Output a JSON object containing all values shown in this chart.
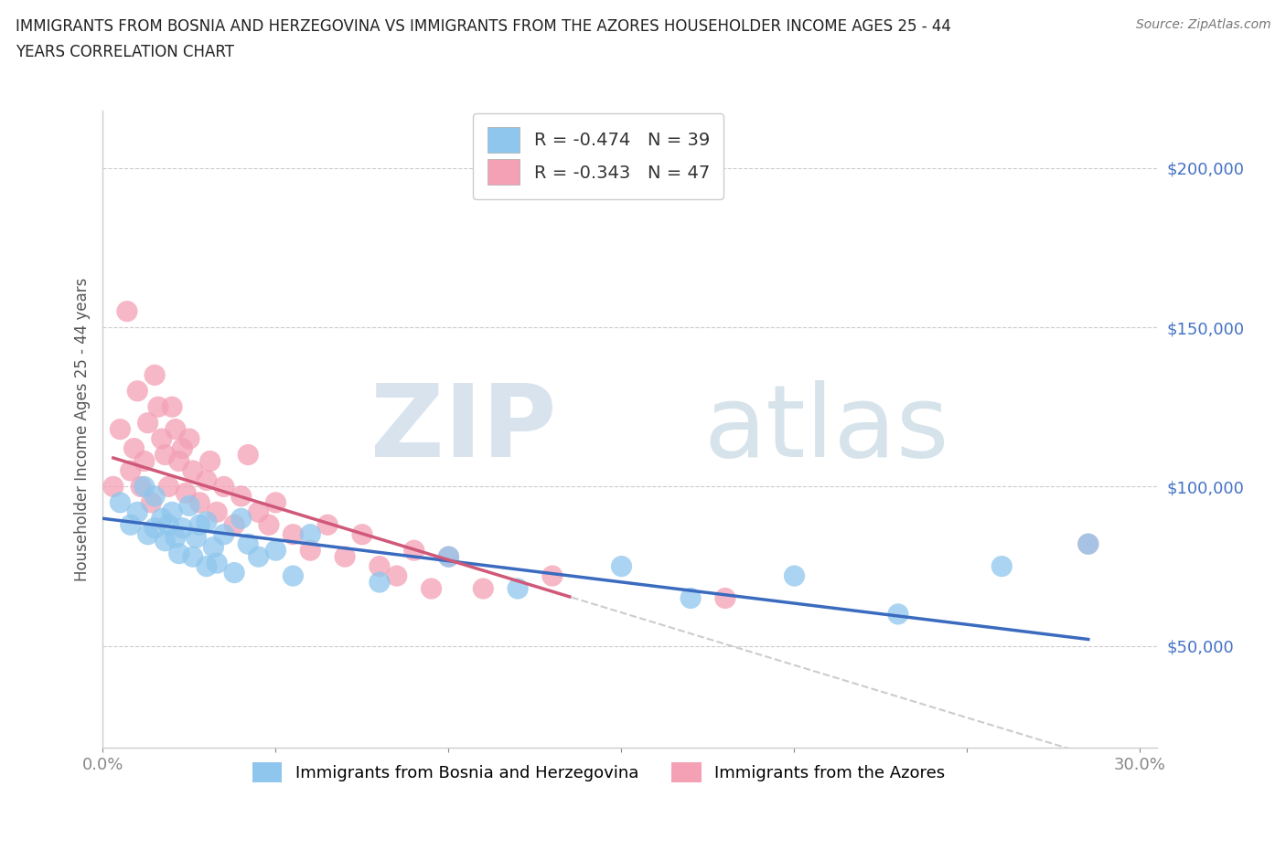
{
  "title_line1": "IMMIGRANTS FROM BOSNIA AND HERZEGOVINA VS IMMIGRANTS FROM THE AZORES HOUSEHOLDER INCOME AGES 25 - 44",
  "title_line2": "YEARS CORRELATION CHART",
  "source": "Source: ZipAtlas.com",
  "ylabel": "Householder Income Ages 25 - 44 years",
  "xlim": [
    0.0,
    0.305
  ],
  "ylim": [
    18000,
    218000
  ],
  "yticks": [
    50000,
    100000,
    150000,
    200000
  ],
  "ytick_labels": [
    "$50,000",
    "$100,000",
    "$150,000",
    "$200,000"
  ],
  "xticks": [
    0.0,
    0.05,
    0.1,
    0.15,
    0.2,
    0.25,
    0.3
  ],
  "xtick_labels": [
    "0.0%",
    "",
    "",
    "",
    "",
    "",
    "30.0%"
  ],
  "r_bosnia": -0.474,
  "n_bosnia": 39,
  "r_azores": -0.343,
  "n_azores": 47,
  "color_bosnia": "#8EC6ED",
  "color_azores": "#F4A0B5",
  "line_color_bosnia": "#3A6BBF",
  "line_color_azores": "#D05878",
  "ytick_color": "#4472C4",
  "watermark_zip": "ZIP",
  "watermark_atlas": "atlas",
  "legend_label_bosnia": "Immigrants from Bosnia and Herzegovina",
  "legend_label_azores": "Immigrants from the Azores",
  "bosnia_x": [
    0.005,
    0.008,
    0.01,
    0.012,
    0.013,
    0.015,
    0.015,
    0.017,
    0.018,
    0.019,
    0.02,
    0.021,
    0.022,
    0.023,
    0.025,
    0.026,
    0.027,
    0.028,
    0.03,
    0.03,
    0.032,
    0.033,
    0.035,
    0.038,
    0.04,
    0.042,
    0.045,
    0.05,
    0.055,
    0.06,
    0.08,
    0.1,
    0.12,
    0.15,
    0.17,
    0.2,
    0.23,
    0.26,
    0.285
  ],
  "bosnia_y": [
    95000,
    88000,
    92000,
    100000,
    85000,
    97000,
    87000,
    90000,
    83000,
    88000,
    92000,
    84000,
    79000,
    87000,
    94000,
    78000,
    84000,
    88000,
    75000,
    89000,
    81000,
    76000,
    85000,
    73000,
    90000,
    82000,
    78000,
    80000,
    72000,
    85000,
    70000,
    78000,
    68000,
    75000,
    65000,
    72000,
    60000,
    75000,
    82000
  ],
  "azores_x": [
    0.003,
    0.005,
    0.007,
    0.008,
    0.009,
    0.01,
    0.011,
    0.012,
    0.013,
    0.014,
    0.015,
    0.016,
    0.017,
    0.018,
    0.019,
    0.02,
    0.021,
    0.022,
    0.023,
    0.024,
    0.025,
    0.026,
    0.028,
    0.03,
    0.031,
    0.033,
    0.035,
    0.038,
    0.04,
    0.042,
    0.045,
    0.048,
    0.05,
    0.055,
    0.06,
    0.065,
    0.07,
    0.075,
    0.08,
    0.085,
    0.09,
    0.095,
    0.1,
    0.11,
    0.13,
    0.18,
    0.285
  ],
  "azores_y": [
    100000,
    118000,
    155000,
    105000,
    112000,
    130000,
    100000,
    108000,
    120000,
    95000,
    135000,
    125000,
    115000,
    110000,
    100000,
    125000,
    118000,
    108000,
    112000,
    98000,
    115000,
    105000,
    95000,
    102000,
    108000,
    92000,
    100000,
    88000,
    97000,
    110000,
    92000,
    88000,
    95000,
    85000,
    80000,
    88000,
    78000,
    85000,
    75000,
    72000,
    80000,
    68000,
    78000,
    68000,
    72000,
    65000,
    82000
  ]
}
